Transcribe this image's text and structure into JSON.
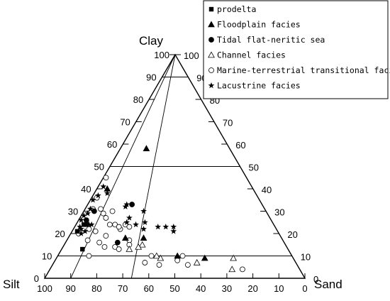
{
  "chart_data": {
    "type": "ternary",
    "vertices": {
      "top": "Clay",
      "left": "Silt",
      "right": "Sand"
    },
    "ticks": [
      100,
      90,
      80,
      70,
      60,
      50,
      40,
      30,
      20,
      10,
      0
    ],
    "grid": {
      "clay_levels": [
        10,
        50,
        90
      ],
      "sand_to_silt_ratio_lines": [
        [
          0.5,
          1
        ],
        [
          1,
          9
        ]
      ]
    },
    "legend_position": "top-right",
    "series": [
      {
        "name": "prodelta",
        "marker": "filled-square",
        "points": [
          {
            "sand": 8,
            "silt": 79,
            "clay": 13
          },
          {
            "sand": 2,
            "silt": 77,
            "clay": 21
          },
          {
            "sand": 3,
            "silt": 73,
            "clay": 24
          },
          {
            "sand": 4,
            "silt": 72,
            "clay": 24
          }
        ]
      },
      {
        "name": "Floodplain facies",
        "marker": "filled-triangle",
        "points": [
          {
            "sand": 10,
            "silt": 32,
            "clay": 58
          },
          {
            "sand": 4,
            "silt": 56,
            "clay": 40
          },
          {
            "sand": 22,
            "silt": 60,
            "clay": 18
          },
          {
            "sand": 29,
            "silt": 53,
            "clay": 18
          },
          {
            "sand": 46,
            "silt": 44,
            "clay": 10
          },
          {
            "sand": 57,
            "silt": 34,
            "clay": 9
          }
        ]
      },
      {
        "name": "Tidal flat-neritic sea",
        "marker": "filled-circle",
        "points": [
          {
            "sand": 3,
            "silt": 71,
            "clay": 26
          },
          {
            "sand": 4,
            "silt": 66,
            "clay": 30
          },
          {
            "sand": 20,
            "silt": 64,
            "clay": 16
          },
          {
            "sand": 17,
            "silt": 50,
            "clay": 33
          }
        ]
      },
      {
        "name": "Channel facies",
        "marker": "open-triangle",
        "points": [
          {
            "sand": 30,
            "silt": 55,
            "clay": 15
          },
          {
            "sand": 29,
            "silt": 57,
            "clay": 14
          },
          {
            "sand": 26,
            "silt": 61,
            "clay": 13
          },
          {
            "sand": 38,
            "silt": 52,
            "clay": 10
          },
          {
            "sand": 40,
            "silt": 51,
            "clay": 9
          },
          {
            "sand": 55,
            "silt": 38,
            "clay": 7
          },
          {
            "sand": 68,
            "silt": 23,
            "clay": 9
          },
          {
            "sand": 70,
            "silt": 26,
            "clay": 4
          }
        ]
      },
      {
        "name": "Marine-terrestrial transitional facies",
        "marker": "open-circle",
        "points": [
          {
            "sand": 1,
            "silt": 54,
            "clay": 45
          },
          {
            "sand": 2,
            "silt": 62,
            "clay": 36
          },
          {
            "sand": 3,
            "silt": 66,
            "clay": 31
          },
          {
            "sand": 6,
            "silt": 63,
            "clay": 31
          },
          {
            "sand": 8,
            "silt": 63,
            "clay": 29
          },
          {
            "sand": 11,
            "silt": 59,
            "clay": 30
          },
          {
            "sand": 10,
            "silt": 63,
            "clay": 27
          },
          {
            "sand": 6,
            "silt": 72,
            "clay": 22
          },
          {
            "sand": 13,
            "silt": 63,
            "clay": 24
          },
          {
            "sand": 15,
            "silt": 61,
            "clay": 24
          },
          {
            "sand": 18,
            "silt": 60,
            "clay": 22
          },
          {
            "sand": 19,
            "silt": 57,
            "clay": 24
          },
          {
            "sand": 21,
            "silt": 56,
            "clay": 23
          },
          {
            "sand": 8,
            "silt": 75,
            "clay": 17
          },
          {
            "sand": 13,
            "silt": 71,
            "clay": 16
          },
          {
            "sand": 16,
            "silt": 70,
            "clay": 14
          },
          {
            "sand": 20,
            "silt": 66,
            "clay": 14
          },
          {
            "sand": 24,
            "silt": 59,
            "clay": 17
          },
          {
            "sand": 25,
            "silt": 60,
            "clay": 15
          },
          {
            "sand": 22,
            "silt": 65,
            "clay": 13
          },
          {
            "sand": 12,
            "silt": 78,
            "clay": 10
          },
          {
            "sand": 36,
            "silt": 54,
            "clay": 10
          },
          {
            "sand": 35,
            "silt": 58,
            "clay": 7
          },
          {
            "sand": 41,
            "silt": 53,
            "clay": 6
          },
          {
            "sand": 47,
            "silt": 45,
            "clay": 8
          },
          {
            "sand": 48,
            "silt": 42,
            "clay": 10
          },
          {
            "sand": 52,
            "silt": 42,
            "clay": 6
          },
          {
            "sand": 74,
            "silt": 22,
            "clay": 4
          },
          {
            "sand": 3,
            "silt": 77,
            "clay": 20
          },
          {
            "sand": 9,
            "silt": 70,
            "clay": 21
          },
          {
            "sand": 14,
            "silt": 67,
            "clay": 19
          },
          {
            "sand": 17,
            "silt": 60,
            "clay": 23
          }
        ]
      },
      {
        "name": "Lacustrine facies",
        "marker": "star",
        "points": [
          {
            "sand": 2,
            "silt": 57,
            "clay": 41
          },
          {
            "sand": 5,
            "silt": 57,
            "clay": 38
          },
          {
            "sand": 2,
            "silt": 61,
            "clay": 37
          },
          {
            "sand": 1,
            "silt": 64,
            "clay": 35
          },
          {
            "sand": 2,
            "silt": 67,
            "clay": 31
          },
          {
            "sand": 1,
            "silt": 71,
            "clay": 28
          },
          {
            "sand": 2,
            "silt": 69,
            "clay": 29
          },
          {
            "sand": 3,
            "silt": 75,
            "clay": 22
          },
          {
            "sand": 4,
            "silt": 76,
            "clay": 20
          },
          {
            "sand": 5,
            "silt": 74,
            "clay": 21
          },
          {
            "sand": 5,
            "silt": 71,
            "clay": 24
          },
          {
            "sand": 6,
            "silt": 70,
            "clay": 24
          },
          {
            "sand": 1,
            "silt": 73,
            "clay": 26
          },
          {
            "sand": 2,
            "silt": 75,
            "clay": 23
          },
          {
            "sand": 15,
            "silt": 53,
            "clay": 32
          },
          {
            "sand": 15,
            "silt": 52,
            "clay": 33
          },
          {
            "sand": 19,
            "silt": 56,
            "clay": 25
          },
          {
            "sand": 19,
            "silt": 54,
            "clay": 27
          },
          {
            "sand": 23,
            "silt": 53,
            "clay": 24
          },
          {
            "sand": 23,
            "silt": 47,
            "clay": 30
          },
          {
            "sand": 26,
            "silt": 49,
            "clay": 25
          },
          {
            "sand": 27,
            "silt": 51,
            "clay": 22
          },
          {
            "sand": 32,
            "silt": 45,
            "clay": 23
          },
          {
            "sand": 35,
            "silt": 42,
            "clay": 23
          },
          {
            "sand": 39,
            "silt": 40,
            "clay": 21
          },
          {
            "sand": 38,
            "silt": 39,
            "clay": 23
          }
        ]
      }
    ]
  }
}
